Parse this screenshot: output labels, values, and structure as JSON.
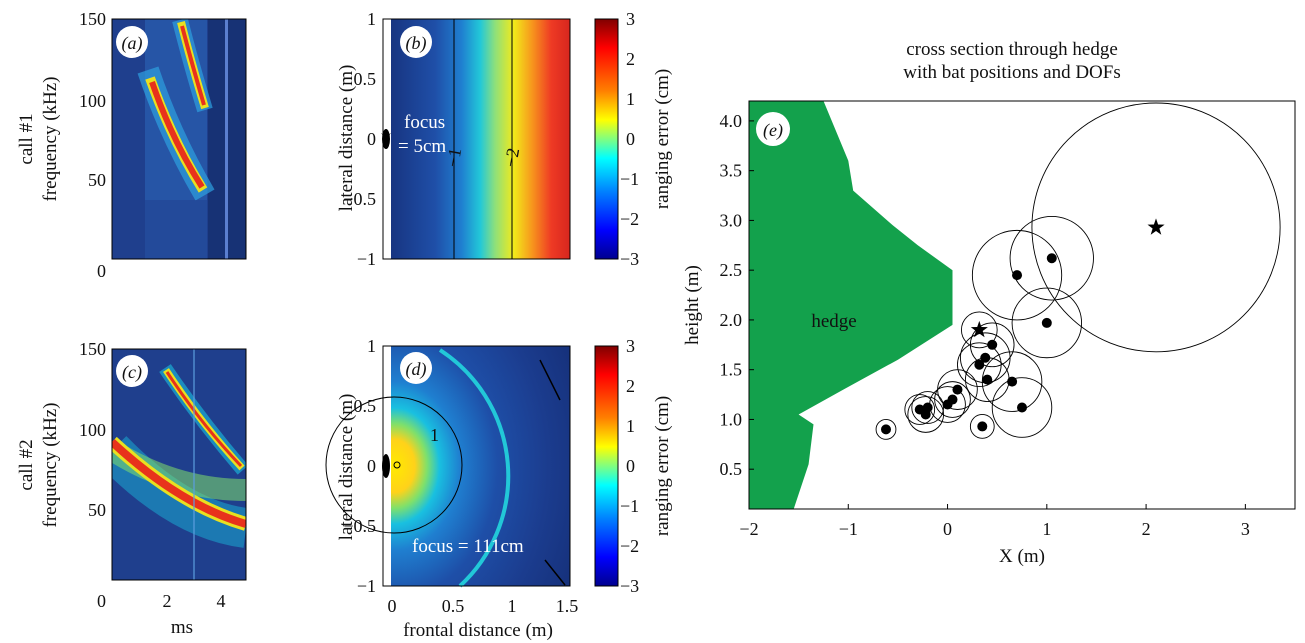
{
  "colors": {
    "spec_bg": "#1e3f8c",
    "hedge": "#13a14c",
    "axis": "#000000",
    "jet": [
      "#00008f",
      "#0000ff",
      "#0080ff",
      "#00ffff",
      "#80ff80",
      "#ffff00",
      "#ff8000",
      "#ff0000",
      "#800000"
    ]
  },
  "panel_a": {
    "letter": "(a)",
    "row_label": "call #1",
    "ylabel": "frequency (kHz)",
    "y_ticks": [
      "150",
      "100",
      "50",
      "0"
    ]
  },
  "panel_c": {
    "letter": "(c)",
    "row_label": "call #2",
    "ylabel": "frequency (kHz)",
    "y_ticks": [
      "150",
      "100",
      "50",
      "0"
    ],
    "x_ticks": [
      "0",
      "2",
      "4"
    ],
    "xlabel": "ms"
  },
  "panel_b": {
    "letter": "(b)",
    "ylabel": "lateral distance (m)",
    "y_ticks": [
      "1",
      "0.5",
      "0",
      "−0.5",
      "−1"
    ],
    "annotation_line1": "focus",
    "annotation_line2": "= 5cm",
    "contour_labels": [
      "−1",
      "−2"
    ],
    "colorbar_label": "ranging error (cm)",
    "colorbar_ticks": [
      "3",
      "2",
      "1",
      "0",
      "−1",
      "−2",
      "−3"
    ]
  },
  "panel_d": {
    "letter": "(d)",
    "ylabel": "lateral distance (m)",
    "y_ticks": [
      "1",
      "0.5",
      "0",
      "−0.5",
      "−1"
    ],
    "x_ticks": [
      "0",
      "0.5",
      "1",
      "1.5"
    ],
    "xlabel": "frontal distance (m)",
    "annotation": "focus = 111cm",
    "contour_label": "1",
    "colorbar_label": "ranging error (cm)",
    "colorbar_ticks": [
      "3",
      "2",
      "1",
      "0",
      "−1",
      "−2",
      "−3"
    ]
  },
  "panel_e": {
    "letter": "(e)",
    "title_line1": "cross section through hedge",
    "title_line2": "with bat positions and DOFs",
    "hedge_label": "hedge",
    "xlabel": "X (m)",
    "ylabel": "height (m)",
    "x_ticks": [
      "−2",
      "−1",
      "0",
      "1",
      "2",
      "3"
    ],
    "y_ticks": [
      "4.0",
      "3.5",
      "3.0",
      "2.5",
      "2.0",
      "1.5",
      "1.0",
      "0.5"
    ]
  },
  "chart_data": [
    {
      "type": "heatmap",
      "panel": "a",
      "ylabel": "frequency (kHz)",
      "ylim": [
        0,
        150
      ],
      "description_series": [
        {
          "name": "",
          "values": []
        }
      ]
    },
    {
      "type": "heatmap",
      "panel": "c",
      "xlabel": "ms",
      "ylabel": "frequency (kHz)",
      "xlim": [
        0,
        5
      ],
      "ylim": [
        0,
        150
      ]
    },
    {
      "type": "heatmap",
      "panel": "b",
      "ylabel": "lateral distance (m)",
      "ylim": [
        -1,
        1
      ],
      "xlim": [
        -0.1,
        1.6
      ],
      "colorbar_range": [
        -3,
        3
      ],
      "contours": [
        {
          "label": "−1",
          "x": 0.5
        },
        {
          "label": "−2",
          "x": 1.0
        }
      ]
    },
    {
      "type": "heatmap",
      "panel": "d",
      "xlabel": "frontal distance (m)",
      "ylabel": "lateral distance (m)",
      "xlim": [
        -0.1,
        1.6
      ],
      "ylim": [
        -1,
        1
      ],
      "colorbar_range": [
        -3,
        3
      ],
      "contours": [
        {
          "label": "1",
          "radius": 0.55
        }
      ]
    },
    {
      "type": "scatter",
      "panel": "e",
      "xlabel": "X (m)",
      "ylabel": "height (m)",
      "xlim": [
        -2,
        3.5
      ],
      "ylim": [
        0.1,
        4.2
      ],
      "hedge_outline": [
        [
          -2,
          4.2
        ],
        [
          -1.25,
          4.2
        ],
        [
          -1.0,
          3.6
        ],
        [
          -0.95,
          3.3
        ],
        [
          -0.55,
          2.95
        ],
        [
          -0.3,
          2.75
        ],
        [
          0.05,
          2.5
        ],
        [
          0.05,
          1.95
        ],
        [
          -0.5,
          1.6
        ],
        [
          -1.05,
          1.3
        ],
        [
          -1.5,
          1.05
        ],
        [
          -1.35,
          0.95
        ],
        [
          -1.4,
          0.55
        ],
        [
          -1.55,
          0.1
        ],
        [
          -2,
          0.1
        ]
      ],
      "series": [
        {
          "name": "",
          "marker": "dot",
          "points": [
            {
              "x": -0.62,
              "y": 0.9,
              "r": 0.1
            },
            {
              "x": -0.28,
              "y": 1.1,
              "r": 0.15
            },
            {
              "x": -0.22,
              "y": 1.05,
              "r": 0.18
            },
            {
              "x": -0.2,
              "y": 1.12,
              "r": 0.16
            },
            {
              "x": 0.0,
              "y": 1.15,
              "r": 0.18
            },
            {
              "x": 0.05,
              "y": 1.2,
              "r": 0.18
            },
            {
              "x": 0.1,
              "y": 1.3,
              "r": 0.2
            },
            {
              "x": 0.35,
              "y": 0.93,
              "r": 0.12
            },
            {
              "x": 0.32,
              "y": 1.55,
              "r": 0.22
            },
            {
              "x": 0.4,
              "y": 1.4,
              "r": 0.22
            },
            {
              "x": 0.38,
              "y": 1.62,
              "r": 0.25
            },
            {
              "x": 0.45,
              "y": 1.75,
              "r": 0.22
            },
            {
              "x": 0.65,
              "y": 1.38,
              "r": 0.3
            },
            {
              "x": 0.75,
              "y": 1.12,
              "r": 0.3
            },
            {
              "x": 0.7,
              "y": 2.45,
              "r": 0.45
            },
            {
              "x": 1.0,
              "y": 1.97,
              "r": 0.35
            },
            {
              "x": 1.05,
              "y": 2.62,
              "r": 0.42
            }
          ]
        },
        {
          "name": "",
          "marker": "star",
          "points": [
            {
              "x": 0.32,
              "y": 1.9,
              "r": 0.18
            },
            {
              "x": 2.1,
              "y": 2.93,
              "r": 1.25
            }
          ]
        }
      ]
    }
  ]
}
